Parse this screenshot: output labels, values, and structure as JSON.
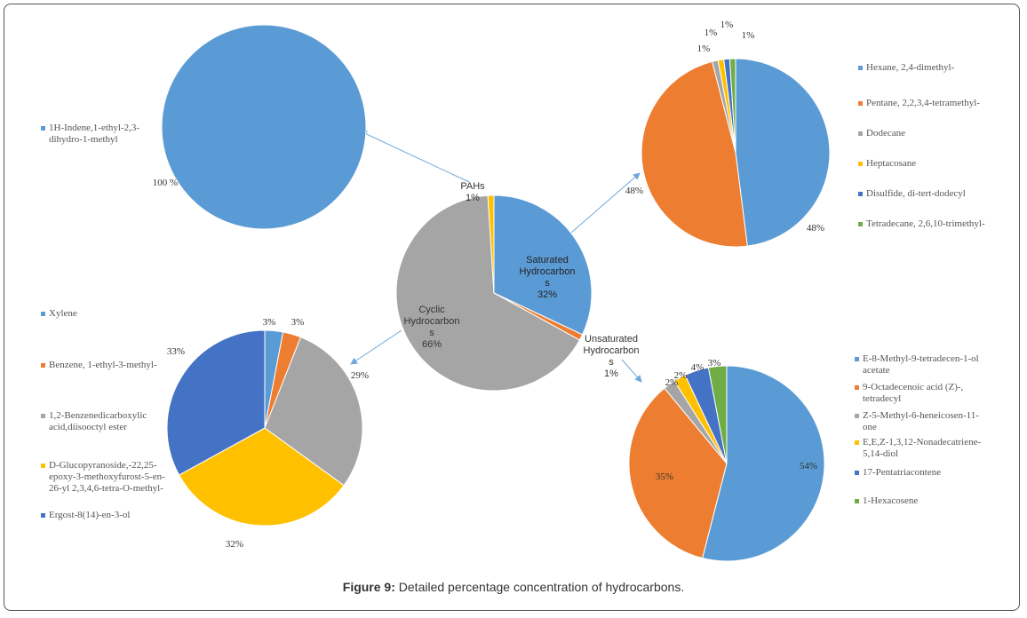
{
  "caption": {
    "label": "Figure 9:",
    "text": " Detailed percentage concentration of hydrocarbons."
  },
  "chart_data": [
    {
      "type": "pie",
      "id": "center",
      "slices": [
        {
          "name": "Saturated Hydrocarbon s",
          "value": 32,
          "label": "32%",
          "color": "#5B9BD5"
        },
        {
          "name": "Unsaturated Hydrocarbon s",
          "value": 1,
          "label": "1%",
          "color": "#ED7D31"
        },
        {
          "name": "Cyclic Hydrocarbon s",
          "value": 66,
          "label": "66%",
          "color": "#A5A5A5"
        },
        {
          "name": "PAHs",
          "value": 1,
          "label": "1%",
          "color": "#FFC000"
        }
      ]
    },
    {
      "type": "pie",
      "id": "pahs",
      "slices": [
        {
          "name": "1H-Indene,1-ethyl-2,3-dihydro-1-methyl",
          "value": 100,
          "label": "100 %",
          "color": "#5B9BD5"
        }
      ]
    },
    {
      "type": "pie",
      "id": "saturated",
      "slices": [
        {
          "name": "Hexane, 2,4-dimethyl-",
          "value": 48,
          "label": "48%",
          "color": "#5B9BD5"
        },
        {
          "name": "Pentane, 2,2,3,4-tetramethyl-",
          "value": 48,
          "label": "48%",
          "color": "#ED7D31"
        },
        {
          "name": "Dodecane",
          "value": 1,
          "label": "1%",
          "color": "#A5A5A5"
        },
        {
          "name": "Heptacosane",
          "value": 1,
          "label": "1%",
          "color": "#FFC000"
        },
        {
          "name": "Disulfide, di-tert-dodecyl",
          "value": 1,
          "label": "1%",
          "color": "#4472C4"
        },
        {
          "name": "Tetradecane, 2,6,10-trimethyl-",
          "value": 1,
          "label": "1%",
          "color": "#70AD47"
        }
      ]
    },
    {
      "type": "pie",
      "id": "cyclic",
      "slices": [
        {
          "name": "Xylene",
          "value": 3,
          "label": "3%",
          "color": "#5B9BD5"
        },
        {
          "name": "Benzene, 1-ethyl-3-methyl-",
          "value": 3,
          "label": "3%",
          "color": "#ED7D31"
        },
        {
          "name": "1,2-Benzenedicarboxylic acid,diisooctyl ester",
          "value": 29,
          "label": "29%",
          "color": "#A5A5A5"
        },
        {
          "name": "D-Glucopyranoside,-22,25-epoxy-3-methoxyfurost-5-en-26-yl 2,3,4,6-tetra-O-methyl-",
          "value": 32,
          "label": "32%",
          "color": "#FFC000"
        },
        {
          "name": "Ergost-8(14)-en-3-ol",
          "value": 33,
          "label": "33%",
          "color": "#4472C4"
        }
      ]
    },
    {
      "type": "pie",
      "id": "unsaturated",
      "slices": [
        {
          "name": "E-8-Methyl-9-tetradecen-1-ol acetate",
          "value": 54,
          "label": "54%",
          "color": "#5B9BD5"
        },
        {
          "name": "9-Octadecenoic acid (Z)-, tetradecyl",
          "value": 35,
          "label": "35%",
          "color": "#ED7D31"
        },
        {
          "name": "Z-5-Methyl-6-heneicosen-11-one",
          "value": 2,
          "label": "2%",
          "color": "#A5A5A5"
        },
        {
          "name": "E,E,Z-1,3,12-Nonadecatriene-5,14-diol",
          "value": 2,
          "label": "2%",
          "color": "#FFC000"
        },
        {
          "name": "17-Pentatriacontene",
          "value": 4,
          "label": "4%",
          "color": "#4472C4"
        },
        {
          "name": "1-Hexacosene",
          "value": 3,
          "label": "3%",
          "color": "#70AD47"
        }
      ]
    }
  ]
}
